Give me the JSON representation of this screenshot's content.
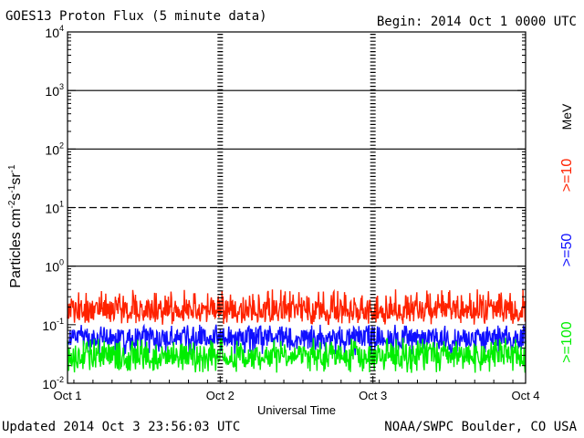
{
  "header": {
    "title": "GOES13 Proton Flux (5 minute data)",
    "begin": "Begin: 2014 Oct 1 0000 UTC"
  },
  "footer": {
    "updated": "Updated 2014 Oct  3 23:56:03 UTC",
    "credit": "NOAA/SWPC Boulder, CO USA"
  },
  "chart_data": {
    "type": "line",
    "xlabel": "Universal Time",
    "x_ticks": [
      "Oct 1",
      "Oct 2",
      "Oct 3",
      "Oct 4"
    ],
    "xlim_days": [
      0,
      3
    ],
    "yscale": "log",
    "ylim": [
      0.01,
      10000
    ],
    "y_ticks": [
      {
        "value": 0.01,
        "base": "10",
        "exp": "-2"
      },
      {
        "value": 0.1,
        "base": "10",
        "exp": "-1"
      },
      {
        "value": 1,
        "base": "10",
        "exp": "0"
      },
      {
        "value": 10,
        "base": "10",
        "exp": "1"
      },
      {
        "value": 100,
        "base": "10",
        "exp": "2"
      },
      {
        "value": 1000,
        "base": "10",
        "exp": "3"
      },
      {
        "value": 10000,
        "base": "10",
        "exp": "4"
      }
    ],
    "ylabel": {
      "text": "Particles cm",
      "s1": "-2",
      "mid1": "s",
      "s2": "-1",
      "mid2": "sr",
      "s3": "-1"
    },
    "unit_label": "MeV",
    "grid": {
      "solid_levels": [
        1,
        100,
        1000
      ],
      "dashed_levels": [
        10
      ],
      "day_dividers": "dashed"
    },
    "series": [
      {
        "name": ">=10",
        "color": "#ff2200",
        "approx_range": [
          0.1,
          0.4
        ],
        "typical": 0.18
      },
      {
        "name": ">=50",
        "color": "#1010ff",
        "approx_range": [
          0.03,
          0.1
        ],
        "typical": 0.06
      },
      {
        "name": ">=100",
        "color": "#00ee00",
        "approx_range": [
          0.015,
          0.06
        ],
        "typical": 0.03
      }
    ]
  }
}
